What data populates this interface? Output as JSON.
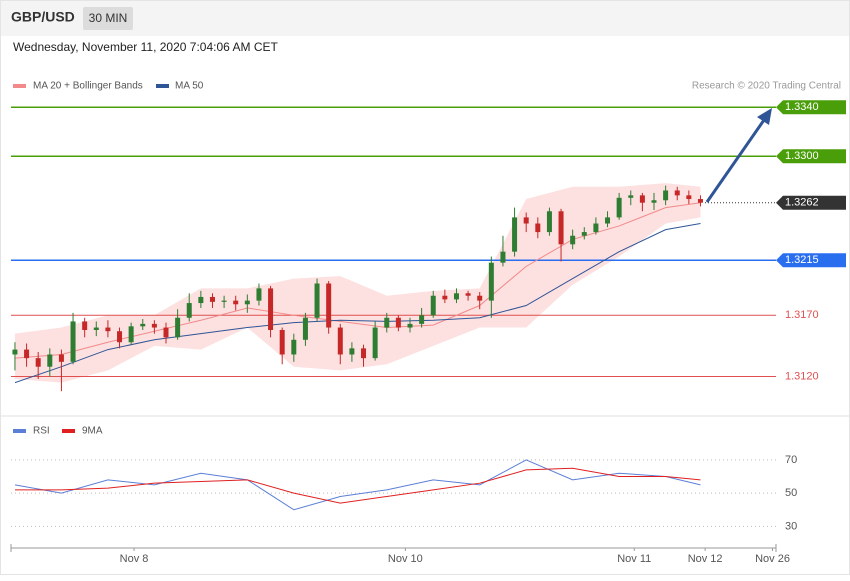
{
  "header": {
    "symbol": "GBP/USD",
    "interval": "30 MIN",
    "date": "Wednesday, November 11, 2020 7:04:06 AM CET",
    "source": "Research © 2020 Trading Central"
  },
  "chart_data": [
    {
      "type": "candlestick",
      "x": [
        0,
        1,
        2,
        3,
        4,
        5,
        6,
        7,
        8,
        9,
        10,
        11,
        12,
        13,
        14,
        15,
        16,
        17,
        18,
        19,
        20,
        21,
        22,
        23,
        24,
        25,
        26,
        27,
        28,
        29,
        30,
        31,
        32,
        33,
        34,
        35,
        36,
        37,
        38,
        39,
        40,
        41,
        42,
        43,
        44,
        45,
        46,
        47,
        48,
        49,
        50,
        51,
        52,
        53,
        54,
        55,
        56,
        57,
        58,
        59
      ],
      "open": [
        1.3138,
        1.3142,
        1.3135,
        1.3128,
        1.3138,
        1.3132,
        1.3165,
        1.3158,
        1.316,
        1.3157,
        1.3148,
        1.3161,
        1.3163,
        1.316,
        1.3152,
        1.3168,
        1.318,
        1.3185,
        1.3181,
        1.3182,
        1.3179,
        1.3182,
        1.3192,
        1.3158,
        1.3138,
        1.315,
        1.3168,
        1.3196,
        1.316,
        1.3138,
        1.3143,
        1.3135,
        1.316,
        1.3168,
        1.316,
        1.3163,
        1.317,
        1.3186,
        1.3183,
        1.3188,
        1.3186,
        1.3182,
        1.3213,
        1.3222,
        1.325,
        1.3245,
        1.3238,
        1.3255,
        1.3228,
        1.3235,
        1.3238,
        1.3245,
        1.325,
        1.3266,
        1.3268,
        1.3262,
        1.3264,
        1.3272,
        1.3268,
        1.3265
      ],
      "high": [
        1.3148,
        1.3147,
        1.314,
        1.3143,
        1.3142,
        1.3172,
        1.3168,
        1.3165,
        1.3166,
        1.316,
        1.3164,
        1.3167,
        1.3166,
        1.3164,
        1.3175,
        1.3188,
        1.319,
        1.3188,
        1.3186,
        1.3186,
        1.3187,
        1.3196,
        1.3194,
        1.316,
        1.3155,
        1.3172,
        1.32,
        1.3198,
        1.3163,
        1.3148,
        1.3146,
        1.3165,
        1.3172,
        1.317,
        1.3168,
        1.3176,
        1.319,
        1.3191,
        1.3192,
        1.319,
        1.3189,
        1.3218,
        1.3235,
        1.3258,
        1.3254,
        1.325,
        1.3258,
        1.3257,
        1.324,
        1.3242,
        1.325,
        1.3255,
        1.327,
        1.3272,
        1.327,
        1.327,
        1.3276,
        1.3275,
        1.3272,
        1.3268
      ],
      "low": [
        1.3125,
        1.3128,
        1.3118,
        1.312,
        1.3108,
        1.313,
        1.3152,
        1.3153,
        1.3152,
        1.3143,
        1.3146,
        1.3158,
        1.3155,
        1.3147,
        1.315,
        1.3165,
        1.3176,
        1.3176,
        1.3176,
        1.3174,
        1.3172,
        1.3178,
        1.3152,
        1.313,
        1.3132,
        1.3145,
        1.3165,
        1.3155,
        1.313,
        1.3132,
        1.3128,
        1.3133,
        1.3156,
        1.3157,
        1.3156,
        1.316,
        1.3168,
        1.318,
        1.318,
        1.3182,
        1.3175,
        1.3168,
        1.321,
        1.3218,
        1.3238,
        1.3233,
        1.3235,
        1.3214,
        1.3224,
        1.3232,
        1.3236,
        1.3242,
        1.3248,
        1.326,
        1.3255,
        1.3256,
        1.326,
        1.3264,
        1.3261,
        1.3259
      ],
      "close": [
        1.3142,
        1.3135,
        1.3128,
        1.3138,
        1.3132,
        1.3165,
        1.3158,
        1.316,
        1.3157,
        1.3148,
        1.3161,
        1.3163,
        1.316,
        1.3152,
        1.3168,
        1.318,
        1.3185,
        1.3181,
        1.3182,
        1.3179,
        1.3182,
        1.3192,
        1.3158,
        1.3138,
        1.315,
        1.3168,
        1.3196,
        1.316,
        1.3138,
        1.3143,
        1.3135,
        1.316,
        1.3168,
        1.316,
        1.3163,
        1.317,
        1.3186,
        1.3183,
        1.3188,
        1.3186,
        1.3182,
        1.3213,
        1.3222,
        1.325,
        1.3245,
        1.3238,
        1.3255,
        1.3228,
        1.3235,
        1.3238,
        1.3245,
        1.325,
        1.3266,
        1.3268,
        1.3262,
        1.3264,
        1.3272,
        1.3268,
        1.3265,
        1.3262
      ],
      "colors": {
        "up": "#2e7d32",
        "down": "#c62828"
      },
      "xlim": [
        -0.34,
        65.5
      ],
      "ylim": [
        1.3091,
        1.335
      ],
      "indicators": [
        {
          "name": "MA 20 + Bollinger Bands",
          "color": "#f28a8a",
          "band_color": "#fde0e0",
          "x": [
            0,
            4,
            8,
            12,
            16,
            20,
            24,
            28,
            32,
            36,
            40,
            44,
            48,
            52,
            56,
            59
          ],
          "values": [
            1.3135,
            1.3138,
            1.3148,
            1.3157,
            1.3166,
            1.3176,
            1.317,
            1.3165,
            1.316,
            1.3162,
            1.3178,
            1.321,
            1.3232,
            1.3243,
            1.3258,
            1.3262
          ],
          "upper": [
            1.3155,
            1.316,
            1.317,
            1.317,
            1.3192,
            1.3192,
            1.32,
            1.3202,
            1.3186,
            1.319,
            1.3192,
            1.3265,
            1.3275,
            1.3275,
            1.3278,
            1.3275
          ],
          "lower": [
            1.3118,
            1.3115,
            1.3125,
            1.3145,
            1.3142,
            1.316,
            1.3128,
            1.3125,
            1.313,
            1.3145,
            1.316,
            1.316,
            1.3195,
            1.3218,
            1.3245,
            1.325
          ]
        },
        {
          "name": "MA 50",
          "color": "#2f5597",
          "x": [
            0,
            4,
            8,
            12,
            16,
            20,
            24,
            28,
            32,
            36,
            40,
            44,
            48,
            52,
            56,
            59
          ],
          "values": [
            1.3115,
            1.3128,
            1.3142,
            1.315,
            1.3155,
            1.316,
            1.3164,
            1.3166,
            1.3165,
            1.3166,
            1.3168,
            1.3178,
            1.32,
            1.3222,
            1.324,
            1.3245
          ]
        }
      ],
      "levels": [
        {
          "value": 1.334,
          "label": "1.3340",
          "color": "#4a9e0a",
          "style": "box"
        },
        {
          "value": 1.33,
          "label": "1.3300",
          "color": "#4a9e0a",
          "style": "box"
        },
        {
          "value": 1.3262,
          "label": "1.3262",
          "color": "#333333",
          "style": "current"
        },
        {
          "value": 1.3215,
          "label": "1.3215",
          "color": "#2a6ef0",
          "style": "box"
        },
        {
          "value": 1.317,
          "label": "1.3170",
          "color": "#e05050",
          "style": "text"
        },
        {
          "value": 1.312,
          "label": "1.3120",
          "color": "#e05050",
          "style": "text"
        }
      ]
    },
    {
      "type": "line",
      "x": [
        0,
        4,
        8,
        12,
        16,
        20,
        24,
        28,
        32,
        36,
        40,
        44,
        48,
        52,
        56,
        59
      ],
      "series": [
        {
          "name": "RSI",
          "color": "#5b7fd6",
          "values": [
            55,
            50,
            58,
            55,
            62,
            58,
            40,
            48,
            52,
            58,
            55,
            70,
            58,
            62,
            60,
            55
          ]
        },
        {
          "name": "9MA",
          "color": "#e02020",
          "values": [
            52,
            52,
            53,
            56,
            57,
            58,
            50,
            44,
            48,
            52,
            56,
            64,
            65,
            60,
            60,
            58
          ]
        }
      ],
      "xlim": [
        -0.34,
        65.5
      ],
      "ylim": [
        20,
        85
      ],
      "yticks": [
        30,
        50,
        70
      ],
      "xticks": [
        {
          "value": 10.25,
          "label": "Nov 8"
        },
        {
          "value": 33.6,
          "label": "Nov 10"
        },
        {
          "value": 53.3,
          "label": "Nov 11"
        },
        {
          "value": 59.4,
          "label": "Nov 12"
        },
        {
          "value": 65.2,
          "label": "Nov 26"
        }
      ]
    }
  ]
}
